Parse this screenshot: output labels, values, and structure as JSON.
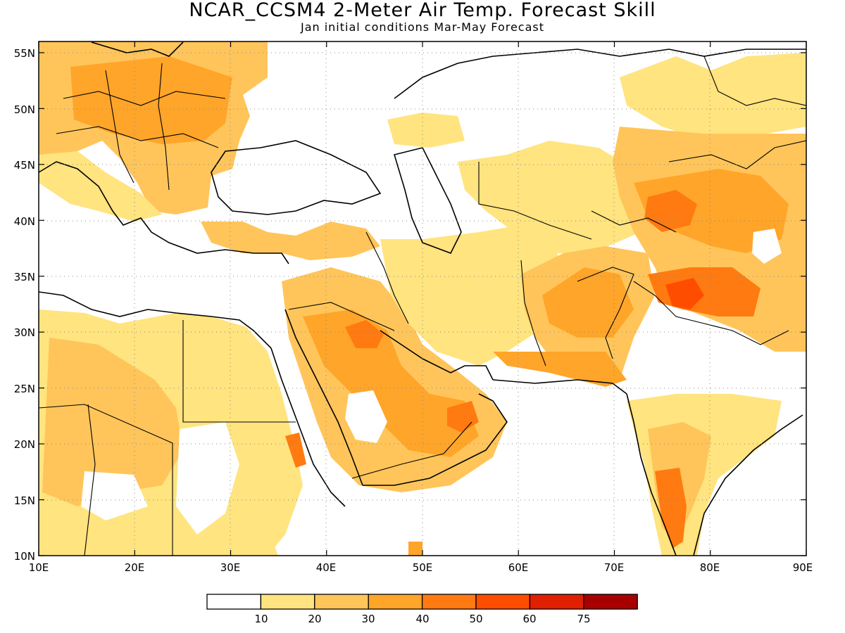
{
  "header": {
    "title": "NCAR_CCSM4 2-Meter Air Temp. Forecast Skill",
    "subtitle": "Jan initial conditions   Mar-May Forecast"
  },
  "axes": {
    "lon_ticks": [
      "10E",
      "20E",
      "30E",
      "40E",
      "50E",
      "60E",
      "70E",
      "80E",
      "90E"
    ],
    "lat_ticks": [
      "55N",
      "50N",
      "45N",
      "40N",
      "35N",
      "30N",
      "25N",
      "20N",
      "15N",
      "10N"
    ],
    "lon_range": [
      10,
      90
    ],
    "lat_range": [
      10,
      56
    ],
    "grid": "dotted"
  },
  "colorbar": {
    "labels": [
      "10",
      "20",
      "30",
      "40",
      "50",
      "60",
      "75"
    ],
    "colors": [
      "#ffffff",
      "#ffe47f",
      "#ffc55a",
      "#ffa529",
      "#ff7a10",
      "#ff4d00",
      "#e02000",
      "#a80000"
    ]
  }
}
